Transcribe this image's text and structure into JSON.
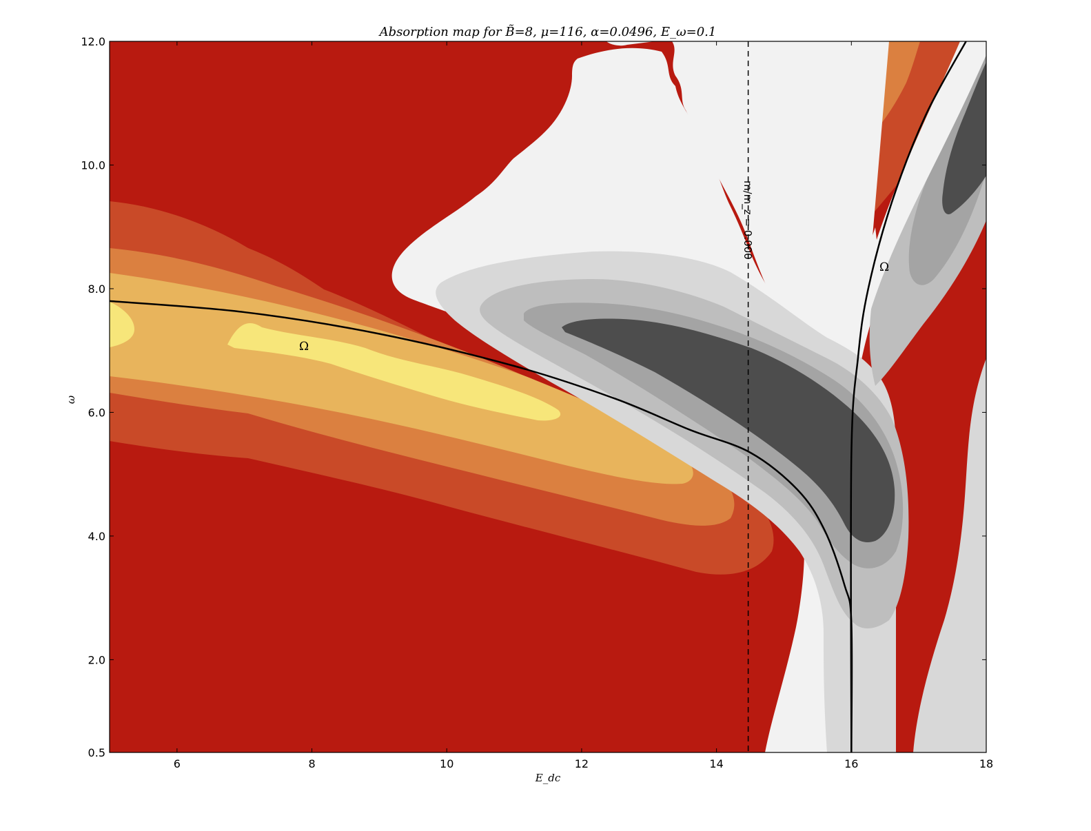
{
  "chart_data": {
    "type": "contour",
    "title": "Absorption map for B̃=8, μ=116, α=0.0496, E_ω=0.1",
    "xlabel": "E_dc",
    "ylabel": "ω",
    "xlim": [
      5,
      18
    ],
    "ylim": [
      0.5,
      12.0
    ],
    "x_ticks": [
      "6",
      "8",
      "10",
      "12",
      "14",
      "16",
      "18"
    ],
    "y_ticks": [
      "0.5",
      "2.0",
      "4.0",
      "6.0",
      "8.0",
      "10.0",
      "12.0"
    ],
    "grid": false,
    "vertical_line": {
      "x": 14.47,
      "style": "dashed",
      "label": "m/m_z = 0.000"
    },
    "curve_labels": [
      "Ω",
      "Ω"
    ],
    "colors": {
      "red": "#b81a10",
      "orange_red": "#c94a28",
      "orange": "#db8040",
      "light_orange": "#e8b45c",
      "yellow": "#f7e67a",
      "white": "#f2f2f2",
      "grey_light": "#d8d8d8",
      "grey_mid": "#bebebe",
      "grey_dark": "#a4a4a4",
      "charcoal": "#4d4d4d"
    },
    "resonance_curves": [
      {
        "name": "Ω",
        "points": [
          [
            5.0,
            7.8
          ],
          [
            7.0,
            7.62
          ],
          [
            9.0,
            7.27
          ],
          [
            11.0,
            6.75
          ],
          [
            12.5,
            6.22
          ],
          [
            13.6,
            5.72
          ],
          [
            14.5,
            5.35
          ],
          [
            15.2,
            4.75
          ],
          [
            15.6,
            4.1
          ],
          [
            15.9,
            3.2
          ],
          [
            16.0,
            2.6
          ],
          [
            16.0,
            0.5
          ]
        ]
      },
      {
        "name": "Ω",
        "points": [
          [
            16.0,
            0.5
          ],
          [
            16.0,
            5.3
          ],
          [
            16.1,
            6.9
          ],
          [
            16.25,
            8.0
          ],
          [
            16.6,
            9.4
          ],
          [
            17.1,
            10.8
          ],
          [
            17.7,
            12.0
          ]
        ]
      }
    ]
  }
}
